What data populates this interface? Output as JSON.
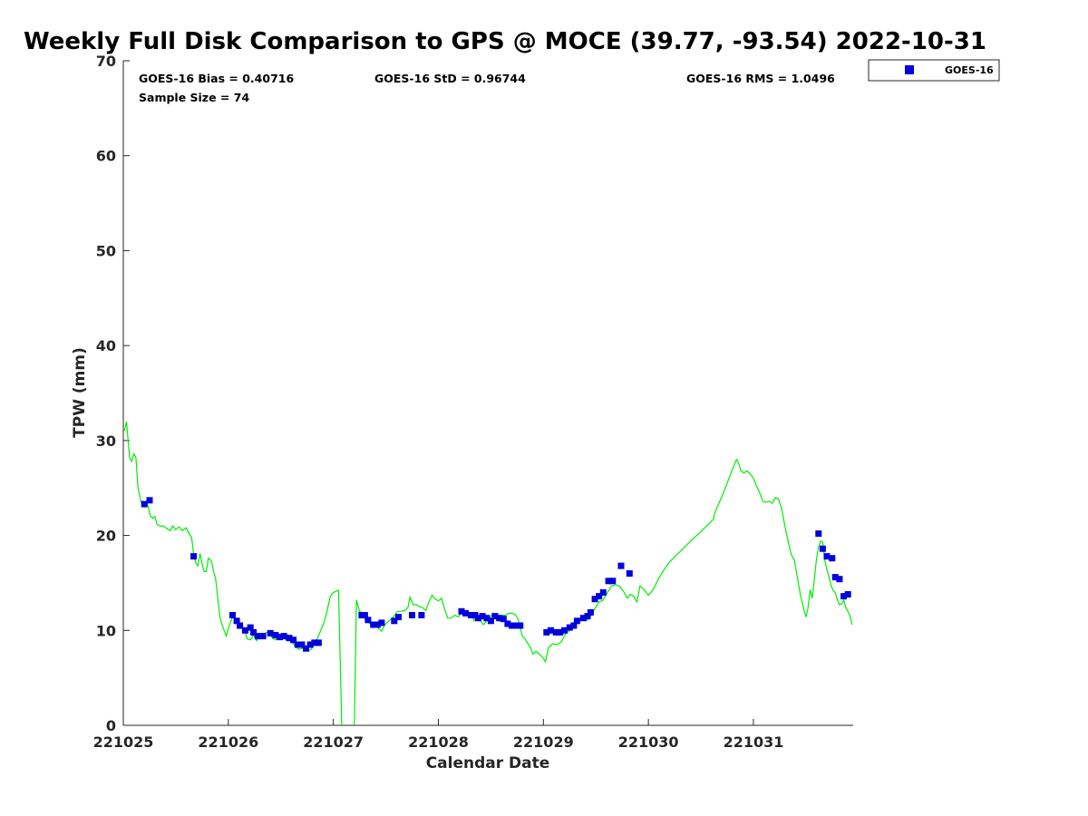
{
  "chart_data": {
    "type": "scatter",
    "title": "Weekly Full Disk Comparison to GPS @ MOCE (39.77, -93.54) 2022-10-31",
    "xlabel": "Calendar Date",
    "ylabel": "TPW (mm)",
    "xlim": [
      0,
      6.95
    ],
    "ylim": [
      0,
      70
    ],
    "x_unit": "days since 221025",
    "x_ticks": [
      {
        "x": 0,
        "label": "221025"
      },
      {
        "x": 1,
        "label": "221026"
      },
      {
        "x": 2,
        "label": "221027"
      },
      {
        "x": 3,
        "label": "221028"
      },
      {
        "x": 4,
        "label": "221029"
      },
      {
        "x": 5,
        "label": "221030"
      },
      {
        "x": 6,
        "label": "221031"
      }
    ],
    "y_ticks": [
      0,
      10,
      20,
      30,
      40,
      50,
      60,
      70
    ],
    "grid": false,
    "legend": {
      "position": "top-right",
      "entries": [
        "GOES-16"
      ]
    },
    "stats": {
      "bias": "GOES-16 Bias = 0.40716",
      "std": "GOES-16 StD = 0.96744",
      "rms": "GOES-16 RMS = 1.0496",
      "sample": "Sample Size = 74"
    },
    "series": [
      {
        "name": "GOES-16",
        "kind": "scatter",
        "marker": "square",
        "color": "#0000dd",
        "points": [
          [
            0.2,
            23.3
          ],
          [
            0.25,
            23.7
          ],
          [
            0.67,
            17.8
          ],
          [
            1.04,
            11.6
          ],
          [
            1.08,
            11.0
          ],
          [
            1.11,
            10.5
          ],
          [
            1.16,
            10.0
          ],
          [
            1.21,
            10.3
          ],
          [
            1.24,
            9.8
          ],
          [
            1.28,
            9.4
          ],
          [
            1.33,
            9.4
          ],
          [
            1.4,
            9.7
          ],
          [
            1.45,
            9.5
          ],
          [
            1.49,
            9.3
          ],
          [
            1.53,
            9.4
          ],
          [
            1.58,
            9.2
          ],
          [
            1.62,
            9.0
          ],
          [
            1.66,
            8.5
          ],
          [
            1.7,
            8.5
          ],
          [
            1.74,
            8.1
          ],
          [
            1.78,
            8.5
          ],
          [
            1.82,
            8.7
          ],
          [
            1.86,
            8.7
          ],
          [
            2.27,
            11.6
          ],
          [
            2.3,
            11.6
          ],
          [
            2.33,
            11.1
          ],
          [
            2.38,
            10.6
          ],
          [
            2.42,
            10.6
          ],
          [
            2.46,
            10.8
          ],
          [
            2.58,
            11.0
          ],
          [
            2.62,
            11.4
          ],
          [
            2.75,
            11.6
          ],
          [
            2.84,
            11.6
          ],
          [
            3.22,
            12.0
          ],
          [
            3.26,
            11.8
          ],
          [
            3.31,
            11.6
          ],
          [
            3.35,
            11.6
          ],
          [
            3.38,
            11.3
          ],
          [
            3.42,
            11.5
          ],
          [
            3.46,
            11.3
          ],
          [
            3.5,
            11.0
          ],
          [
            3.54,
            11.5
          ],
          [
            3.58,
            11.3
          ],
          [
            3.62,
            11.2
          ],
          [
            3.66,
            10.7
          ],
          [
            3.7,
            10.5
          ],
          [
            3.74,
            10.5
          ],
          [
            3.78,
            10.5
          ],
          [
            4.03,
            9.8
          ],
          [
            4.07,
            10.0
          ],
          [
            4.12,
            9.8
          ],
          [
            4.16,
            9.8
          ],
          [
            4.2,
            10.0
          ],
          [
            4.25,
            10.3
          ],
          [
            4.29,
            10.5
          ],
          [
            4.32,
            11.0
          ],
          [
            4.38,
            11.3
          ],
          [
            4.42,
            11.5
          ],
          [
            4.45,
            11.9
          ],
          [
            4.49,
            13.3
          ],
          [
            4.53,
            13.6
          ],
          [
            4.57,
            14.0
          ],
          [
            4.62,
            15.2
          ],
          [
            4.66,
            15.2
          ],
          [
            4.74,
            16.8
          ],
          [
            4.82,
            16.0
          ],
          [
            6.62,
            20.2
          ],
          [
            6.66,
            18.6
          ],
          [
            6.7,
            17.8
          ],
          [
            6.75,
            17.6
          ],
          [
            6.78,
            15.6
          ],
          [
            6.82,
            15.4
          ],
          [
            6.86,
            13.6
          ],
          [
            6.9,
            13.8
          ]
        ]
      },
      {
        "name": "GPS",
        "kind": "line",
        "color": "#00ee00",
        "points": [
          [
            0.01,
            31.0
          ],
          [
            0.03,
            32.0
          ],
          [
            0.06,
            28.2
          ],
          [
            0.08,
            27.8
          ],
          [
            0.1,
            28.6
          ],
          [
            0.12,
            28.2
          ],
          [
            0.14,
            25.0
          ],
          [
            0.17,
            23.5
          ],
          [
            0.2,
            23.0
          ],
          [
            0.23,
            23.3
          ],
          [
            0.26,
            22.0
          ],
          [
            0.28,
            21.8
          ],
          [
            0.3,
            22.0
          ],
          [
            0.32,
            21.2
          ],
          [
            0.35,
            21.0
          ],
          [
            0.38,
            21.0
          ],
          [
            0.42,
            20.7
          ],
          [
            0.45,
            20.5
          ],
          [
            0.47,
            21.0
          ],
          [
            0.5,
            20.6
          ],
          [
            0.53,
            20.9
          ],
          [
            0.56,
            20.5
          ],
          [
            0.6,
            20.8
          ],
          [
            0.62,
            20.3
          ],
          [
            0.65,
            19.8
          ],
          [
            0.67,
            18.0
          ],
          [
            0.69,
            17.1
          ],
          [
            0.71,
            16.8
          ],
          [
            0.73,
            18.1
          ],
          [
            0.75,
            17.0
          ],
          [
            0.77,
            16.2
          ],
          [
            0.79,
            16.2
          ],
          [
            0.81,
            17.6
          ],
          [
            0.84,
            17.3
          ],
          [
            0.86,
            16.2
          ],
          [
            0.88,
            15.4
          ],
          [
            0.9,
            13.4
          ],
          [
            0.92,
            11.4
          ],
          [
            0.94,
            10.6
          ],
          [
            0.96,
            10.0
          ],
          [
            0.98,
            9.4
          ],
          [
            1.0,
            10.2
          ],
          [
            1.02,
            10.8
          ],
          [
            1.05,
            11.7
          ],
          [
            1.07,
            11.0
          ],
          [
            1.1,
            10.3
          ],
          [
            1.13,
            10.2
          ],
          [
            1.16,
            9.8
          ],
          [
            1.18,
            9.1
          ],
          [
            1.21,
            9.0
          ],
          [
            1.24,
            9.5
          ],
          [
            1.27,
            8.9
          ],
          [
            1.3,
            9.5
          ],
          [
            1.33,
            9.4
          ],
          [
            1.36,
            9.8
          ],
          [
            1.39,
            9.6
          ],
          [
            1.42,
            9.2
          ],
          [
            1.45,
            9.0
          ],
          [
            1.49,
            9.6
          ],
          [
            1.52,
            9.3
          ],
          [
            1.55,
            9.0
          ],
          [
            1.58,
            9.1
          ],
          [
            1.61,
            8.7
          ],
          [
            1.64,
            8.3
          ],
          [
            1.67,
            8.0
          ],
          [
            1.7,
            8.1
          ],
          [
            1.73,
            8.3
          ],
          [
            1.76,
            7.8
          ],
          [
            1.79,
            8.0
          ],
          [
            1.82,
            8.6
          ],
          [
            1.85,
            9.2
          ],
          [
            1.88,
            10.0
          ],
          [
            1.91,
            10.8
          ],
          [
            1.94,
            12.0
          ],
          [
            1.97,
            13.6
          ],
          [
            2.0,
            14.0
          ],
          [
            2.04,
            14.2
          ],
          [
            2.05,
            14.2
          ],
          [
            2.08,
            0
          ],
          null,
          [
            2.2,
            0
          ],
          [
            2.22,
            13.2
          ],
          [
            2.25,
            12.0
          ],
          [
            2.28,
            11.8
          ],
          [
            2.31,
            11.0
          ],
          [
            2.34,
            10.8
          ],
          [
            2.37,
            10.5
          ],
          [
            2.4,
            10.6
          ],
          [
            2.43,
            10.2
          ],
          [
            2.46,
            9.9
          ],
          [
            2.49,
            10.6
          ],
          [
            2.52,
            10.9
          ],
          [
            2.55,
            11.2
          ],
          [
            2.58,
            11.5
          ],
          [
            2.61,
            12.0
          ],
          [
            2.64,
            12.0
          ],
          [
            2.68,
            12.1
          ],
          [
            2.71,
            12.4
          ],
          [
            2.73,
            13.5
          ],
          [
            2.76,
            12.7
          ],
          [
            2.79,
            12.7
          ],
          [
            2.82,
            12.5
          ],
          [
            2.85,
            12.4
          ],
          [
            2.88,
            12.1
          ],
          [
            2.91,
            13.0
          ],
          [
            2.94,
            13.7
          ],
          [
            2.97,
            13.3
          ],
          [
            3.0,
            13.1
          ],
          [
            3.03,
            13.4
          ],
          [
            3.06,
            12.2
          ],
          [
            3.09,
            11.3
          ],
          [
            3.12,
            11.3
          ],
          [
            3.16,
            11.6
          ],
          [
            3.19,
            11.4
          ],
          [
            3.22,
            11.9
          ],
          [
            3.25,
            11.7
          ],
          [
            3.28,
            11.9
          ],
          [
            3.31,
            11.7
          ],
          [
            3.34,
            11.0
          ],
          [
            3.37,
            11.7
          ],
          [
            3.4,
            11.0
          ],
          [
            3.43,
            10.6
          ],
          [
            3.46,
            11.0
          ],
          [
            3.49,
            11.3
          ],
          [
            3.52,
            11.8
          ],
          [
            3.55,
            11.3
          ],
          [
            3.58,
            11.2
          ],
          [
            3.61,
            11.6
          ],
          [
            3.64,
            11.6
          ],
          [
            3.67,
            11.8
          ],
          [
            3.7,
            11.8
          ],
          [
            3.73,
            11.7
          ],
          [
            3.76,
            11.2
          ],
          [
            3.78,
            10.2
          ],
          [
            3.8,
            9.4
          ],
          [
            3.82,
            9.2
          ],
          [
            3.84,
            8.8
          ],
          [
            3.86,
            8.5
          ],
          [
            3.88,
            8.1
          ],
          [
            3.9,
            7.5
          ],
          [
            3.93,
            7.8
          ],
          [
            3.96,
            7.5
          ],
          [
            3.99,
            7.2
          ],
          [
            4.02,
            6.7
          ],
          [
            4.05,
            8.2
          ],
          [
            4.09,
            8.6
          ],
          [
            4.13,
            8.5
          ],
          [
            4.17,
            8.8
          ],
          [
            4.21,
            9.6
          ],
          [
            4.25,
            10.0
          ],
          [
            4.29,
            10.3
          ],
          [
            4.33,
            11.0
          ],
          [
            4.37,
            11.3
          ],
          [
            4.41,
            11.0
          ],
          [
            4.45,
            11.5
          ],
          [
            4.49,
            12.3
          ],
          [
            4.53,
            13.0
          ],
          [
            4.57,
            13.2
          ],
          [
            4.61,
            14.0
          ],
          [
            4.65,
            14.7
          ],
          [
            4.69,
            14.8
          ],
          [
            4.73,
            14.6
          ],
          [
            4.77,
            14.0
          ],
          [
            4.8,
            13.4
          ],
          [
            4.83,
            13.8
          ],
          [
            4.86,
            13.6
          ],
          [
            4.89,
            13.0
          ],
          [
            4.92,
            14.7
          ],
          [
            4.96,
            14.3
          ],
          [
            5.0,
            13.7
          ],
          [
            5.04,
            14.2
          ],
          [
            5.1,
            15.5
          ],
          [
            5.15,
            16.4
          ],
          [
            5.2,
            17.2
          ],
          [
            5.3,
            18.3
          ],
          [
            5.4,
            19.4
          ],
          [
            5.5,
            20.4
          ],
          [
            5.6,
            21.5
          ],
          [
            5.62,
            21.7
          ],
          [
            5.63,
            22.3
          ],
          [
            5.66,
            23.1
          ],
          [
            5.7,
            24.1
          ],
          [
            5.74,
            25.2
          ],
          [
            5.78,
            26.4
          ],
          [
            5.82,
            27.5
          ],
          [
            5.84,
            28.0
          ],
          [
            5.86,
            27.6
          ],
          [
            5.88,
            26.8
          ],
          [
            5.91,
            26.6
          ],
          [
            5.94,
            26.8
          ],
          [
            5.97,
            26.5
          ],
          [
            6.0,
            26.0
          ],
          [
            6.03,
            25.2
          ],
          [
            6.06,
            24.5
          ],
          [
            6.09,
            23.6
          ],
          [
            6.12,
            23.5
          ],
          [
            6.15,
            23.6
          ],
          [
            6.18,
            23.4
          ],
          [
            6.21,
            24.0
          ],
          [
            6.24,
            23.8
          ],
          [
            6.27,
            22.8
          ],
          [
            6.3,
            21.0
          ],
          [
            6.33,
            19.4
          ],
          [
            6.36,
            18.0
          ],
          [
            6.39,
            17.4
          ],
          [
            6.42,
            15.5
          ],
          [
            6.45,
            13.6
          ],
          [
            6.48,
            12.2
          ],
          [
            6.5,
            11.4
          ],
          [
            6.52,
            12.4
          ],
          [
            6.54,
            14.3
          ],
          [
            6.56,
            13.4
          ],
          [
            6.58,
            15.3
          ],
          [
            6.6,
            17.5
          ],
          [
            6.62,
            18.8
          ],
          [
            6.64,
            19.4
          ],
          [
            6.66,
            19.3
          ],
          [
            6.68,
            17.4
          ],
          [
            6.7,
            16.4
          ],
          [
            6.72,
            15.6
          ],
          [
            6.74,
            14.7
          ],
          [
            6.76,
            14.2
          ],
          [
            6.78,
            14.0
          ],
          [
            6.8,
            13.2
          ],
          [
            6.82,
            12.7
          ],
          [
            6.84,
            12.8
          ],
          [
            6.86,
            13.2
          ],
          [
            6.88,
            12.4
          ],
          [
            6.9,
            12.0
          ],
          [
            6.92,
            11.5
          ],
          [
            6.94,
            10.6
          ]
        ]
      }
    ]
  }
}
